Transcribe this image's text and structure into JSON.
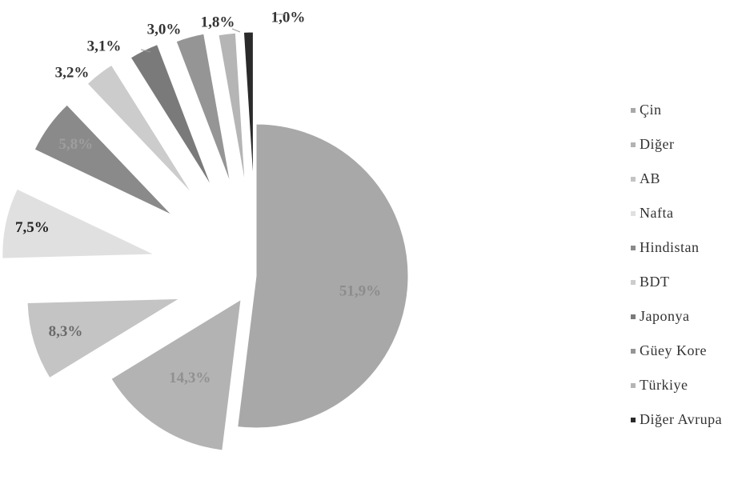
{
  "chart_data": {
    "type": "pie",
    "slices": [
      {
        "name": "Çin",
        "value": 51.9,
        "label": "51,9%",
        "color": "#a8a8a8",
        "label_color": "#8c8c8c"
      },
      {
        "name": "Diğer",
        "value": 14.3,
        "label": "14,3%",
        "color": "#b3b3b3",
        "label_color": "#909090"
      },
      {
        "name": "AB",
        "value": 8.3,
        "label": "8,3%",
        "color": "#c4c4c4",
        "label_color": "#6a6a6a"
      },
      {
        "name": "Nafta",
        "value": 7.5,
        "label": "7,5%",
        "color": "#e0e0e0",
        "label_color": "#222222"
      },
      {
        "name": "Hindistan",
        "value": 5.8,
        "label": "5,8%",
        "color": "#8a8a8a",
        "label_color": "#9e9e9e"
      },
      {
        "name": "BDT",
        "value": 3.2,
        "label": "3,2%",
        "color": "#cccccc",
        "label_color": "#333333"
      },
      {
        "name": "Japonya",
        "value": 3.1,
        "label": "3,1%",
        "color": "#7a7a7a",
        "label_color": "#333333"
      },
      {
        "name": "Güey Kore",
        "value": 3.0,
        "label": "3,0%",
        "color": "#959595",
        "label_color": "#333333"
      },
      {
        "name": "Türkiye",
        "value": 1.8,
        "label": "1,8%",
        "color": "#b5b5b5",
        "label_color": "#333333"
      },
      {
        "name": "Diğer Avrupa",
        "value": 1.0,
        "label": "1,0%",
        "color": "#2a2a2a",
        "label_color": "#333333"
      }
    ],
    "legend_position": "right"
  }
}
